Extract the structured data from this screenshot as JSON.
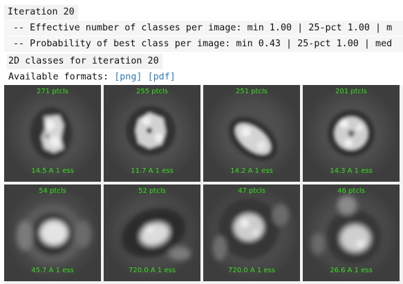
{
  "output": {
    "iteration_header": "Iteration 20",
    "log_lines": [
      "-- Effective number of classes per image: min 1.00 | 25-pct 1.00 | m",
      "-- Probability of best class per image: min 0.43 | 25-pct 1.00 | med"
    ],
    "caption": "2D classes for iteration 20",
    "formats_label": "Available formats:",
    "formats": [
      "[png]",
      "[pdf]"
    ]
  },
  "classes": [
    {
      "particles": "271 ptcls",
      "resolution": "14.5 A 1 ess"
    },
    {
      "particles": "255 ptcls",
      "resolution": "11.7 A 1 ess"
    },
    {
      "particles": "251 ptcls",
      "resolution": "14.2 A 1 ess"
    },
    {
      "particles": "201 ptcls",
      "resolution": "14.3 A 1 ess"
    },
    {
      "particles": "54 ptcls",
      "resolution": "45.7 A 1 ess"
    },
    {
      "particles": "52 ptcls",
      "resolution": "720.0 A 1 ess"
    },
    {
      "particles": "47 ptcls",
      "resolution": "720.0 A 1 ess"
    },
    {
      "particles": "46 ptcls",
      "resolution": "26.6 A 1 ess"
    }
  ],
  "colors": {
    "label_green": "#35e01a",
    "link_blue": "#337ab7",
    "tile_gray": "#4e4e4e"
  }
}
